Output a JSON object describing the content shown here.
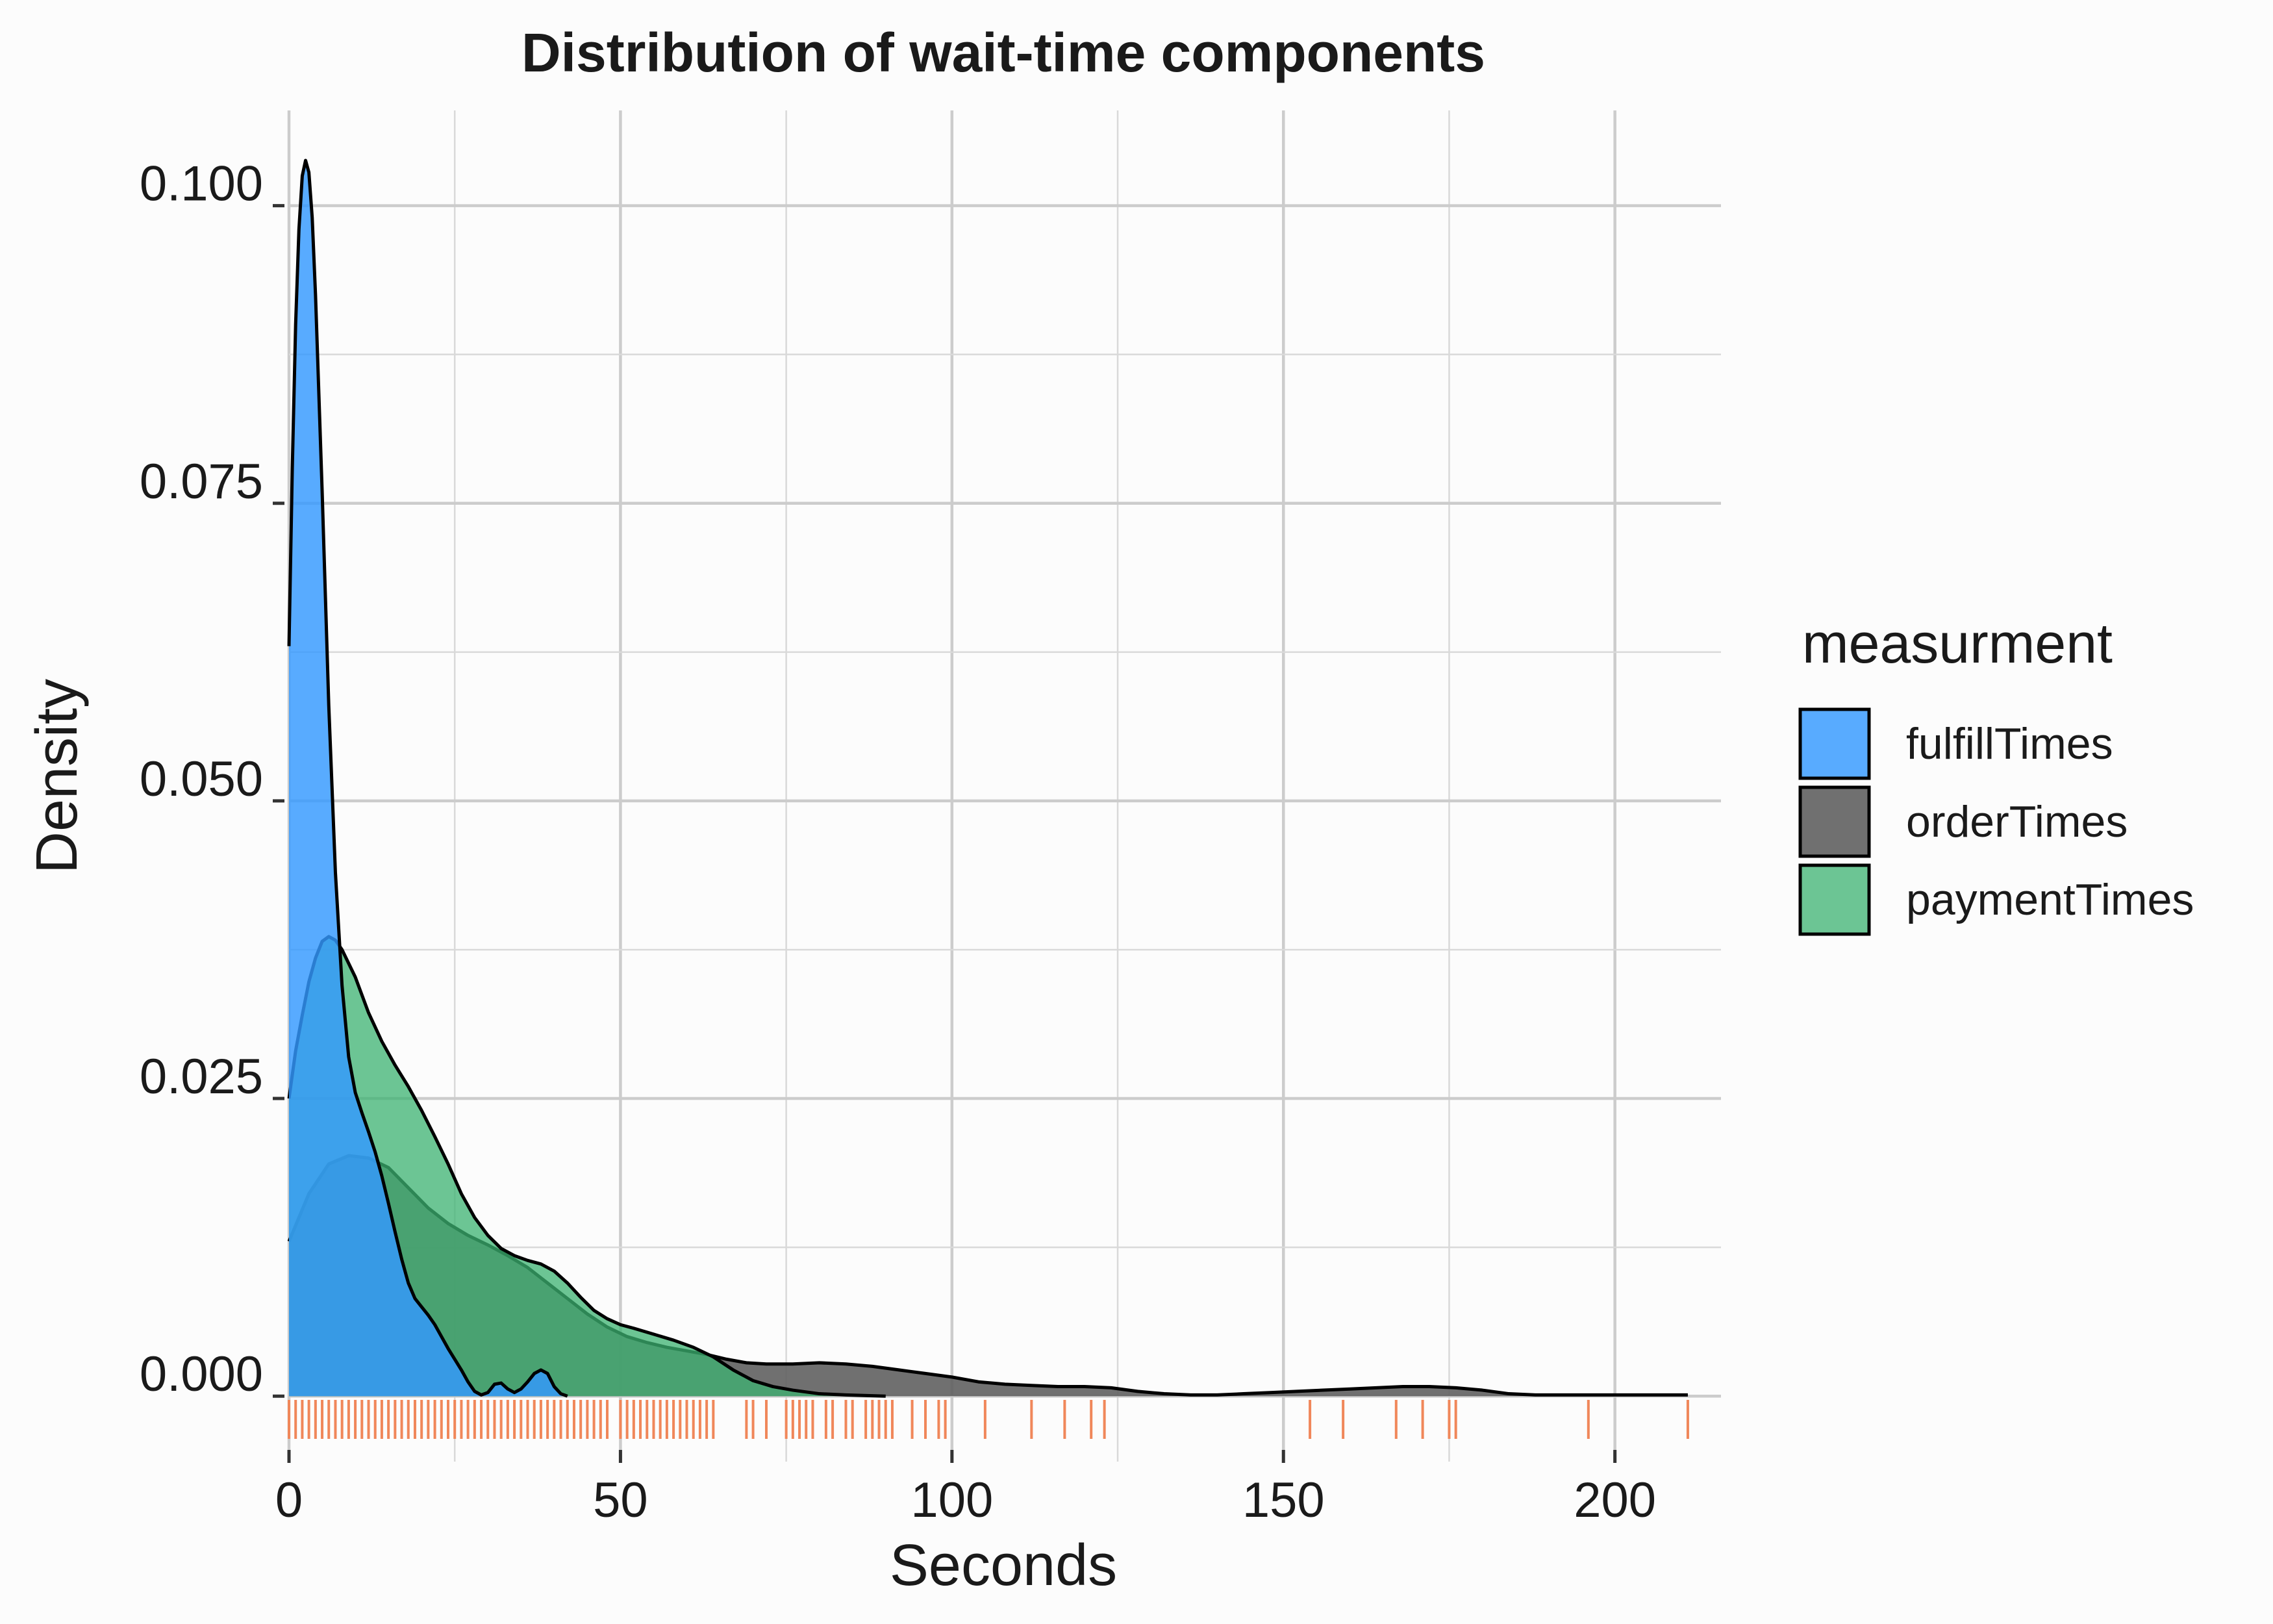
{
  "chart_data": {
    "type": "area",
    "subtype": "density",
    "title": "Distribution of wait-time components",
    "xlabel": "Seconds",
    "ylabel": "Density",
    "xlim": [
      0,
      216
    ],
    "ylim": [
      -0.0055,
      0.108
    ],
    "x_ticks": [
      0,
      50,
      100,
      150,
      200
    ],
    "x_tick_labels": [
      "0",
      "50",
      "100",
      "150",
      "200"
    ],
    "y_ticks": [
      0,
      0.025,
      0.05,
      0.075,
      0.1
    ],
    "y_tick_labels": [
      "0.000",
      "0.025",
      "0.050",
      "0.075",
      "0.100"
    ],
    "grid": true,
    "legend": {
      "title": "measurment",
      "position": "right"
    },
    "series": [
      {
        "name": "orderTimes",
        "color": "#616161",
        "opacity": 0.9,
        "points": [
          [
            0,
            0.013
          ],
          [
            3,
            0.017
          ],
          [
            6,
            0.0195
          ],
          [
            9,
            0.0202
          ],
          [
            12,
            0.02
          ],
          [
            15,
            0.0192
          ],
          [
            18,
            0.0175
          ],
          [
            21,
            0.0158
          ],
          [
            24,
            0.0145
          ],
          [
            27,
            0.0135
          ],
          [
            30,
            0.0127
          ],
          [
            33,
            0.0118
          ],
          [
            36,
            0.0108
          ],
          [
            39,
            0.0095
          ],
          [
            42,
            0.0082
          ],
          [
            45,
            0.0069
          ],
          [
            48,
            0.0058
          ],
          [
            51,
            0.005
          ],
          [
            54,
            0.0045
          ],
          [
            57,
            0.0041
          ],
          [
            60,
            0.0038
          ],
          [
            63,
            0.0035
          ],
          [
            66,
            0.0031
          ],
          [
            69,
            0.0028
          ],
          [
            72,
            0.0027
          ],
          [
            76,
            0.0027
          ],
          [
            80,
            0.0028
          ],
          [
            84,
            0.0027
          ],
          [
            88,
            0.0025
          ],
          [
            92,
            0.0022
          ],
          [
            96,
            0.0019
          ],
          [
            100,
            0.0016
          ],
          [
            104,
            0.0012
          ],
          [
            108,
            0.001
          ],
          [
            112,
            0.0009
          ],
          [
            116,
            0.0008
          ],
          [
            120,
            0.0008
          ],
          [
            124,
            0.0007
          ],
          [
            128,
            0.0004
          ],
          [
            132,
            0.0002
          ],
          [
            136,
            0.0001
          ],
          [
            140,
            0.0001
          ],
          [
            144,
            0.0002
          ],
          [
            148,
            0.0003
          ],
          [
            152,
            0.0004
          ],
          [
            156,
            0.0005
          ],
          [
            160,
            0.0006
          ],
          [
            164,
            0.0007
          ],
          [
            168,
            0.0008
          ],
          [
            172,
            0.0008
          ],
          [
            176,
            0.0007
          ],
          [
            180,
            0.0005
          ],
          [
            184,
            0.0002
          ],
          [
            188,
            0.0001
          ],
          [
            192,
            0.0001
          ],
          [
            196,
            0.0001
          ],
          [
            200,
            0.0001
          ],
          [
            205,
            0.0001
          ],
          [
            211,
            0.0001
          ]
        ]
      },
      {
        "name": "paymentTimes",
        "color": "#3cb371",
        "opacity": 0.75,
        "points": [
          [
            0,
            0.025
          ],
          [
            1,
            0.029
          ],
          [
            2,
            0.032
          ],
          [
            3,
            0.0348
          ],
          [
            4,
            0.0368
          ],
          [
            5,
            0.0382
          ],
          [
            6,
            0.0386
          ],
          [
            7,
            0.0383
          ],
          [
            8,
            0.0375
          ],
          [
            10,
            0.0352
          ],
          [
            12,
            0.0322
          ],
          [
            14,
            0.0298
          ],
          [
            16,
            0.0278
          ],
          [
            18,
            0.026
          ],
          [
            20,
            0.024
          ],
          [
            22,
            0.0218
          ],
          [
            24,
            0.0195
          ],
          [
            26,
            0.017
          ],
          [
            28,
            0.015
          ],
          [
            30,
            0.0135
          ],
          [
            32,
            0.0124
          ],
          [
            34,
            0.0118
          ],
          [
            36,
            0.0114
          ],
          [
            38,
            0.0111
          ],
          [
            40,
            0.0105
          ],
          [
            42,
            0.0095
          ],
          [
            44,
            0.0083
          ],
          [
            46,
            0.0072
          ],
          [
            48,
            0.0065
          ],
          [
            50,
            0.006
          ],
          [
            52,
            0.0057
          ],
          [
            55,
            0.0052
          ],
          [
            58,
            0.0047
          ],
          [
            61,
            0.0041
          ],
          [
            64,
            0.0033
          ],
          [
            67,
            0.0022
          ],
          [
            70,
            0.0013
          ],
          [
            73,
            0.0008
          ],
          [
            76,
            0.0005
          ],
          [
            80,
            0.0002
          ],
          [
            84,
            0.0001
          ],
          [
            90,
            0.0
          ]
        ]
      },
      {
        "name": "fulfillTimes",
        "color": "#3399ff",
        "opacity": 0.82,
        "points": [
          [
            0,
            0.063
          ],
          [
            0.5,
            0.078
          ],
          [
            1,
            0.09
          ],
          [
            1.5,
            0.098
          ],
          [
            2,
            0.1025
          ],
          [
            2.5,
            0.1038
          ],
          [
            3,
            0.1028
          ],
          [
            3.5,
            0.099
          ],
          [
            4,
            0.0925
          ],
          [
            5,
            0.076
          ],
          [
            6,
            0.058
          ],
          [
            7,
            0.044
          ],
          [
            8,
            0.0345
          ],
          [
            9,
            0.0285
          ],
          [
            10,
            0.0255
          ],
          [
            11,
            0.0238
          ],
          [
            12,
            0.0222
          ],
          [
            13,
            0.0205
          ],
          [
            14,
            0.0185
          ],
          [
            15,
            0.0162
          ],
          [
            16,
            0.0138
          ],
          [
            17,
            0.0115
          ],
          [
            18,
            0.0095
          ],
          [
            19,
            0.0082
          ],
          [
            20,
            0.0075
          ],
          [
            21,
            0.0068
          ],
          [
            22,
            0.006
          ],
          [
            23,
            0.005
          ],
          [
            24,
            0.004
          ],
          [
            25,
            0.0031
          ],
          [
            26,
            0.0022
          ],
          [
            27,
            0.0012
          ],
          [
            28,
            0.0004
          ],
          [
            29,
            0.0001
          ],
          [
            30,
            0.0003
          ],
          [
            31,
            0.001
          ],
          [
            32,
            0.0011
          ],
          [
            33,
            0.0006
          ],
          [
            34,
            0.0003
          ],
          [
            35,
            0.0006
          ],
          [
            36,
            0.0012
          ],
          [
            37,
            0.0019
          ],
          [
            38,
            0.0022
          ],
          [
            39,
            0.0019
          ],
          [
            40,
            0.0008
          ],
          [
            41,
            0.0002
          ],
          [
            42,
            0.0
          ]
        ]
      }
    ],
    "rug": {
      "color": "#f0875a",
      "x": [
        0,
        1,
        2,
        3,
        4,
        5,
        6,
        7,
        8,
        9,
        10,
        11,
        12,
        13,
        14,
        15,
        16,
        17,
        18,
        19,
        20,
        21,
        22,
        23,
        24,
        25,
        26,
        27,
        28,
        29,
        30,
        31,
        32,
        33,
        34,
        35,
        36,
        37,
        38,
        39,
        40,
        41,
        42,
        43,
        44,
        45,
        46,
        47,
        48,
        50,
        51,
        52,
        53,
        54,
        55,
        56,
        57,
        58,
        59,
        60,
        61,
        62,
        63,
        64,
        69,
        70,
        72,
        75,
        76,
        77,
        78,
        79,
        81,
        82,
        84,
        85,
        87,
        88,
        89,
        90,
        91,
        94,
        96,
        98,
        99,
        105,
        112,
        117,
        121,
        123,
        154,
        159,
        167,
        171,
        175,
        176,
        196,
        211
      ]
    }
  }
}
